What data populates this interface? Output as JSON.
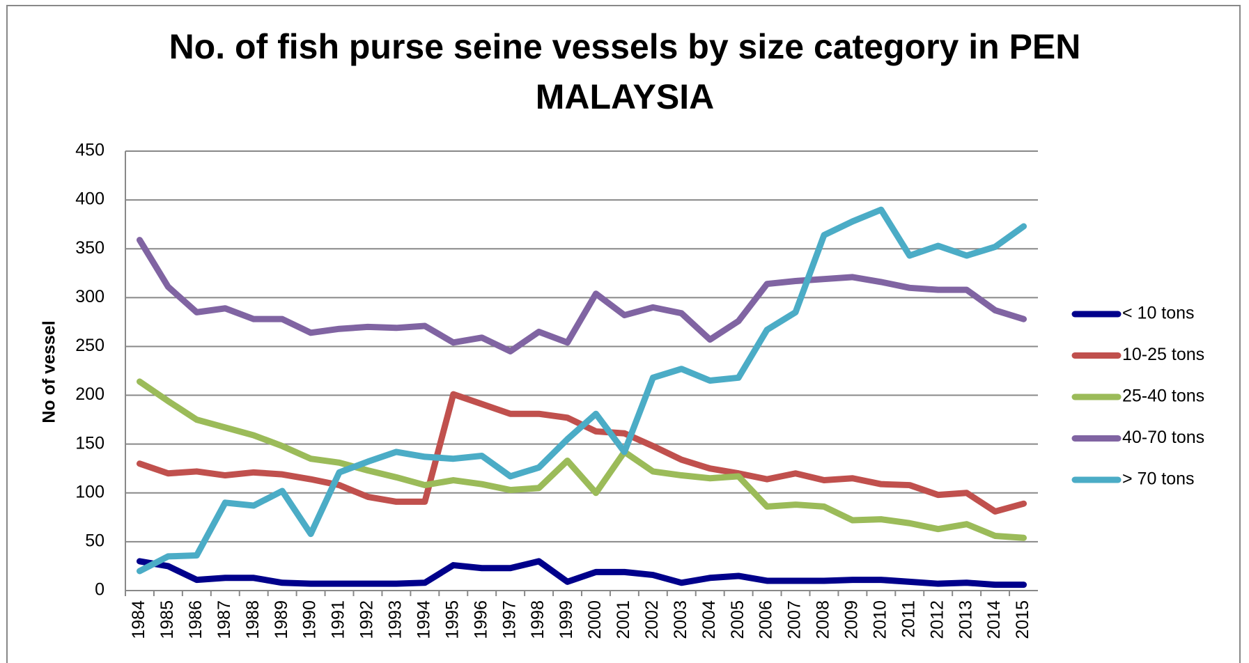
{
  "chart_data": {
    "type": "line",
    "title": "No. of fish purse seine vessels by size category  in  PEN MALAYSIA",
    "y_label": "No of vessel",
    "categories": [
      "1984",
      "1985",
      "1986",
      "1987",
      "1988",
      "1989",
      "1990",
      "1991",
      "1992",
      "1993",
      "1994",
      "1995",
      "1996",
      "1997",
      "1998",
      "1999",
      "2000",
      "2001",
      "2002",
      "2003",
      "2004",
      "2005",
      "2006",
      "2007",
      "2008",
      "2009",
      "2010",
      "2011",
      "2012",
      "2013",
      "2014",
      "2015"
    ],
    "series": [
      {
        "name": "< 10 tons",
        "color": "#00008b",
        "values": [
          30,
          25,
          11,
          13,
          13,
          8,
          7,
          7,
          7,
          7,
          8,
          26,
          23,
          23,
          30,
          9,
          19,
          19,
          16,
          8,
          13,
          15,
          10,
          10,
          10,
          11,
          11,
          9,
          7,
          8,
          6,
          6
        ]
      },
      {
        "name": "10-25 tons",
        "color": "#c0504d",
        "values": [
          130,
          120,
          122,
          118,
          121,
          119,
          114,
          108,
          96,
          91,
          91,
          201,
          191,
          181,
          181,
          177,
          163,
          161,
          148,
          134,
          125,
          120,
          114,
          120,
          113,
          115,
          109,
          108,
          98,
          100,
          81,
          89
        ]
      },
      {
        "name": "25-40 tons",
        "color": "#9bbb59",
        "values": [
          214,
          194,
          175,
          167,
          159,
          148,
          135,
          131,
          123,
          116,
          108,
          113,
          109,
          103,
          105,
          133,
          100,
          142,
          122,
          118,
          115,
          117,
          86,
          88,
          86,
          72,
          73,
          69,
          63,
          68,
          56,
          54
        ]
      },
      {
        "name": "40-70 tons",
        "color": "#8064a2",
        "values": [
          359,
          311,
          285,
          289,
          278,
          278,
          264,
          268,
          270,
          269,
          271,
          254,
          259,
          245,
          265,
          254,
          304,
          282,
          290,
          284,
          257,
          276,
          314,
          317,
          319,
          321,
          316,
          310,
          308,
          308,
          287,
          278
        ]
      },
      {
        "name": "> 70 tons",
        "color": "#4bacc6",
        "values": [
          20,
          35,
          36,
          90,
          87,
          102,
          58,
          121,
          132,
          142,
          137,
          135,
          138,
          117,
          126,
          155,
          181,
          142,
          218,
          227,
          215,
          218,
          267,
          285,
          364,
          378,
          390,
          343,
          353,
          343,
          352,
          373
        ]
      }
    ],
    "ylim": [
      0,
      450
    ],
    "yticks": [
      0,
      50,
      100,
      150,
      200,
      250,
      300,
      350,
      400,
      450
    ],
    "grid": true,
    "legend": "right"
  }
}
